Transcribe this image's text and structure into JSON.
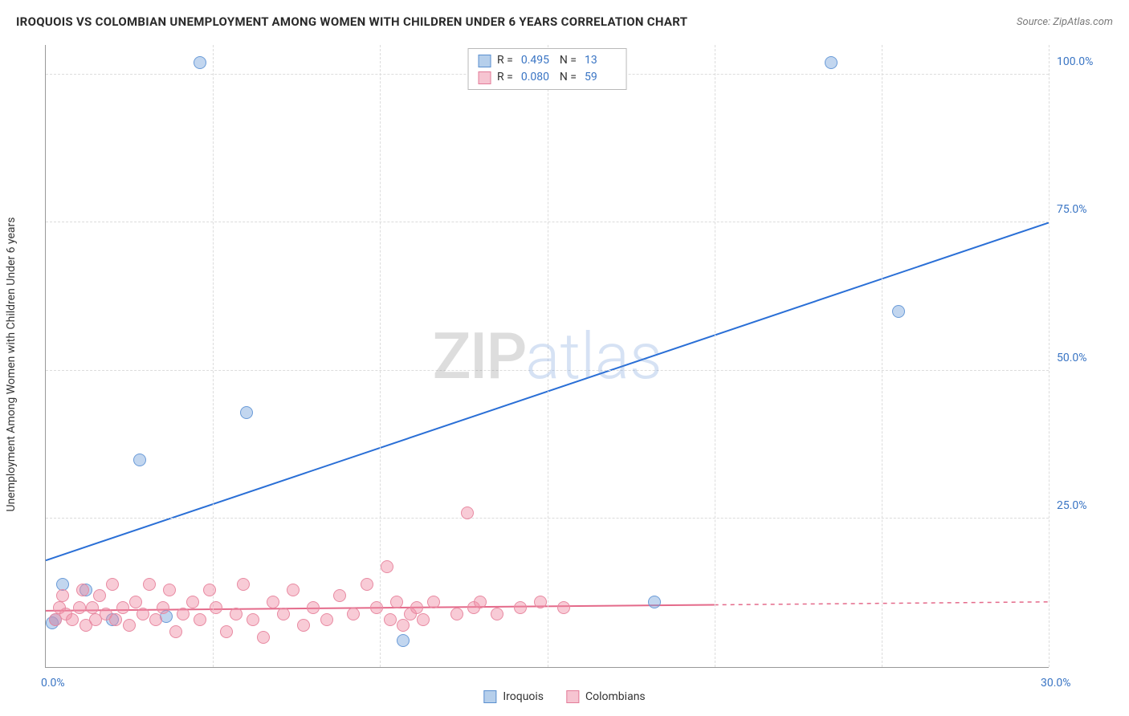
{
  "title": "IROQUOIS VS COLOMBIAN UNEMPLOYMENT AMONG WOMEN WITH CHILDREN UNDER 6 YEARS CORRELATION CHART",
  "source": "Source: ZipAtlas.com",
  "ylabel": "Unemployment Among Women with Children Under 6 years",
  "watermark_a": "ZIP",
  "watermark_b": "atlas",
  "axes": {
    "xlim": [
      0,
      30
    ],
    "ylim": [
      0,
      105
    ],
    "xticks": [
      0,
      5,
      10,
      15,
      20,
      25,
      30
    ],
    "xtick_labels": {
      "0": "0.0%",
      "30": "30.0%"
    },
    "yticks": [
      25,
      50,
      75,
      100
    ],
    "ytick_labels": {
      "25": "25.0%",
      "50": "50.0%",
      "75": "75.0%",
      "100": "100.0%"
    },
    "xtick_color": "#3a75c4",
    "ytick_color": "#3a75c4",
    "grid_color": "#dcdcdc"
  },
  "series": [
    {
      "id": "iroquois",
      "label": "Iroquois",
      "fill": "rgba(120,165,220,0.45)",
      "stroke": "#6a9bd8",
      "swatch_fill": "#b6cfeb",
      "swatch_stroke": "#5a8fcf",
      "marker_radius": 8,
      "r_value": "0.495",
      "n_value": "13",
      "trend": {
        "x1": 0,
        "y1": 18,
        "x2": 30,
        "y2": 75,
        "stroke": "#2a6fd6",
        "width": 2,
        "dash": "none"
      },
      "points": [
        {
          "x": 0.2,
          "y": 7.5
        },
        {
          "x": 0.3,
          "y": 8
        },
        {
          "x": 0.5,
          "y": 14
        },
        {
          "x": 1.2,
          "y": 13
        },
        {
          "x": 2.0,
          "y": 8
        },
        {
          "x": 2.8,
          "y": 35
        },
        {
          "x": 3.6,
          "y": 8.5
        },
        {
          "x": 4.6,
          "y": 102
        },
        {
          "x": 6.0,
          "y": 43
        },
        {
          "x": 10.7,
          "y": 4.5
        },
        {
          "x": 18.2,
          "y": 11
        },
        {
          "x": 23.5,
          "y": 102
        },
        {
          "x": 25.5,
          "y": 60
        }
      ]
    },
    {
      "id": "colombians",
      "label": "Colombians",
      "fill": "rgba(240,140,165,0.45)",
      "stroke": "#e88aa2",
      "swatch_fill": "#f6c4d1",
      "swatch_stroke": "#e37c99",
      "marker_radius": 8,
      "r_value": "0.080",
      "n_value": "59",
      "trend_solid": {
        "x1": 0,
        "y1": 9.5,
        "x2": 20,
        "y2": 10.5,
        "stroke": "#e46a8a",
        "width": 2
      },
      "trend_dash": {
        "x1": 20,
        "y1": 10.5,
        "x2": 30,
        "y2": 11.0,
        "stroke": "#e46a8a",
        "width": 1.5,
        "dash": "5,5"
      },
      "points": [
        {
          "x": 0.3,
          "y": 8
        },
        {
          "x": 0.4,
          "y": 10
        },
        {
          "x": 0.5,
          "y": 12
        },
        {
          "x": 0.6,
          "y": 9
        },
        {
          "x": 0.8,
          "y": 8
        },
        {
          "x": 1.0,
          "y": 10
        },
        {
          "x": 1.1,
          "y": 13
        },
        {
          "x": 1.2,
          "y": 7
        },
        {
          "x": 1.4,
          "y": 10
        },
        {
          "x": 1.5,
          "y": 8
        },
        {
          "x": 1.6,
          "y": 12
        },
        {
          "x": 1.8,
          "y": 9
        },
        {
          "x": 2.0,
          "y": 14
        },
        {
          "x": 2.1,
          "y": 8
        },
        {
          "x": 2.3,
          "y": 10
        },
        {
          "x": 2.5,
          "y": 7
        },
        {
          "x": 2.7,
          "y": 11
        },
        {
          "x": 2.9,
          "y": 9
        },
        {
          "x": 3.1,
          "y": 14
        },
        {
          "x": 3.3,
          "y": 8
        },
        {
          "x": 3.5,
          "y": 10
        },
        {
          "x": 3.7,
          "y": 13
        },
        {
          "x": 3.9,
          "y": 6
        },
        {
          "x": 4.1,
          "y": 9
        },
        {
          "x": 4.4,
          "y": 11
        },
        {
          "x": 4.6,
          "y": 8
        },
        {
          "x": 4.9,
          "y": 13
        },
        {
          "x": 5.1,
          "y": 10
        },
        {
          "x": 5.4,
          "y": 6
        },
        {
          "x": 5.7,
          "y": 9
        },
        {
          "x": 5.9,
          "y": 14
        },
        {
          "x": 6.2,
          "y": 8
        },
        {
          "x": 6.5,
          "y": 5
        },
        {
          "x": 6.8,
          "y": 11
        },
        {
          "x": 7.1,
          "y": 9
        },
        {
          "x": 7.4,
          "y": 13
        },
        {
          "x": 7.7,
          "y": 7
        },
        {
          "x": 8.0,
          "y": 10
        },
        {
          "x": 8.4,
          "y": 8
        },
        {
          "x": 8.8,
          "y": 12
        },
        {
          "x": 9.2,
          "y": 9
        },
        {
          "x": 9.6,
          "y": 14
        },
        {
          "x": 9.9,
          "y": 10
        },
        {
          "x": 10.2,
          "y": 17
        },
        {
          "x": 10.3,
          "y": 8
        },
        {
          "x": 10.5,
          "y": 11
        },
        {
          "x": 10.7,
          "y": 7
        },
        {
          "x": 10.9,
          "y": 9
        },
        {
          "x": 11.1,
          "y": 10
        },
        {
          "x": 11.3,
          "y": 8
        },
        {
          "x": 11.6,
          "y": 11
        },
        {
          "x": 12.3,
          "y": 9
        },
        {
          "x": 12.6,
          "y": 26
        },
        {
          "x": 12.8,
          "y": 10
        },
        {
          "x": 13.0,
          "y": 11
        },
        {
          "x": 13.5,
          "y": 9
        },
        {
          "x": 14.2,
          "y": 10
        },
        {
          "x": 14.8,
          "y": 11
        },
        {
          "x": 15.5,
          "y": 10
        }
      ]
    }
  ]
}
